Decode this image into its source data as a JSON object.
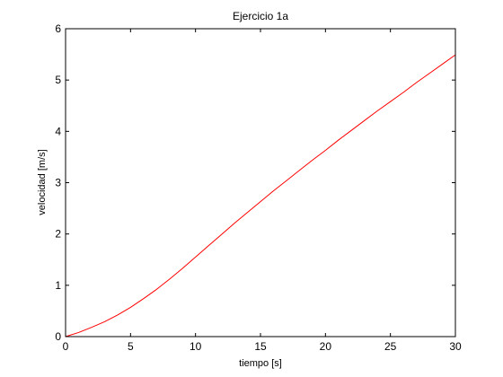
{
  "chart_data": {
    "type": "line",
    "title": "Ejercicio 1a",
    "xlabel": "tiempo [s]",
    "ylabel": "velocidad [m/s]",
    "xlim": [
      0,
      30
    ],
    "ylim": [
      0,
      6
    ],
    "xticks": [
      0,
      5,
      10,
      15,
      20,
      25,
      30
    ],
    "yticks": [
      0,
      1,
      2,
      3,
      4,
      5,
      6
    ],
    "grid": false,
    "legend": "none",
    "series": [
      {
        "color": "#ff0000",
        "x": [
          0,
          1,
          2,
          3,
          4,
          5,
          6,
          7,
          8,
          9,
          10,
          11,
          12,
          13,
          14,
          15,
          16,
          17,
          18,
          19,
          20,
          21,
          22,
          23,
          24,
          25,
          26,
          27,
          28,
          29,
          30
        ],
        "y": [
          0,
          0.08,
          0.18,
          0.29,
          0.42,
          0.57,
          0.74,
          0.92,
          1.12,
          1.33,
          1.55,
          1.77,
          1.99,
          2.21,
          2.42,
          2.63,
          2.84,
          3.04,
          3.24,
          3.44,
          3.63,
          3.83,
          4.02,
          4.21,
          4.4,
          4.58,
          4.76,
          4.95,
          5.13,
          5.31,
          5.49
        ]
      }
    ]
  }
}
